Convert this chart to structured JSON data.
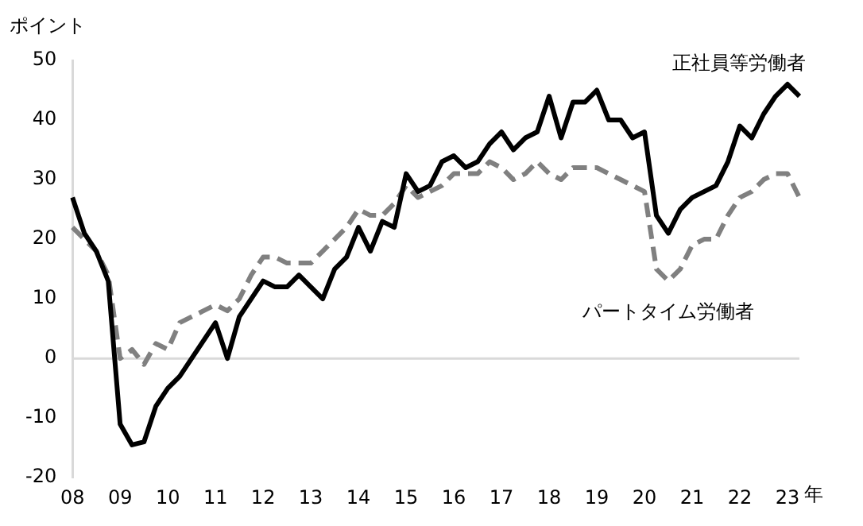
{
  "chart_data": {
    "type": "line",
    "ylabel": "ポイント",
    "xlabel": "年",
    "categories": [
      "08",
      null,
      null,
      null,
      "09",
      null,
      null,
      null,
      "10",
      null,
      null,
      null,
      "11",
      null,
      null,
      null,
      "12",
      null,
      null,
      null,
      "13",
      null,
      null,
      null,
      "14",
      null,
      null,
      null,
      "15",
      null,
      null,
      null,
      "16",
      null,
      null,
      null,
      "17",
      null,
      null,
      null,
      "18",
      null,
      null,
      null,
      "19",
      null,
      null,
      null,
      "20",
      null,
      null,
      null,
      "21",
      null,
      null,
      null,
      "22",
      null,
      null,
      null,
      "23",
      null
    ],
    "series": [
      {
        "name": "正社員等労働者",
        "color": "#000000",
        "line_style": "solid",
        "values": [
          27,
          21,
          18,
          13,
          -11,
          -14.5,
          -14,
          -8,
          -5,
          -3,
          0,
          3,
          6,
          0,
          7,
          10,
          13,
          12,
          12,
          14,
          12,
          10,
          15,
          17,
          22,
          18,
          23,
          22,
          31,
          28,
          29,
          33,
          34,
          32,
          33,
          36,
          38,
          35,
          37,
          38,
          44,
          37,
          43,
          43,
          45,
          40,
          40,
          37,
          38,
          24,
          21,
          25,
          27,
          28,
          29,
          33,
          39,
          37,
          41,
          44,
          46,
          44
        ]
      },
      {
        "name": "パートタイム労働者",
        "color": "#808080",
        "line_style": "dashed",
        "values": [
          22,
          20,
          18,
          14,
          0,
          1.5,
          -1,
          2.5,
          1.5,
          6,
          7,
          8,
          9,
          8,
          10,
          14,
          17,
          17,
          16,
          16,
          16,
          18,
          20,
          22,
          25,
          24,
          24,
          26,
          29,
          27,
          28,
          29,
          31,
          31,
          31,
          33,
          32,
          30,
          31,
          33,
          31,
          30,
          32,
          32,
          32,
          31,
          30,
          29,
          28,
          15,
          13,
          15,
          19,
          20,
          20,
          24,
          27,
          28,
          30,
          31,
          31,
          27
        ]
      }
    ],
    "ylim": [
      -20,
      50
    ],
    "yticks": [
      -20,
      -10,
      0,
      10,
      20,
      30,
      40,
      50
    ],
    "grid": false,
    "legend": false,
    "marker": "none",
    "ref_lines": [
      {
        "axis": "y",
        "value": 0,
        "color": "#d9d9d9"
      }
    ]
  }
}
